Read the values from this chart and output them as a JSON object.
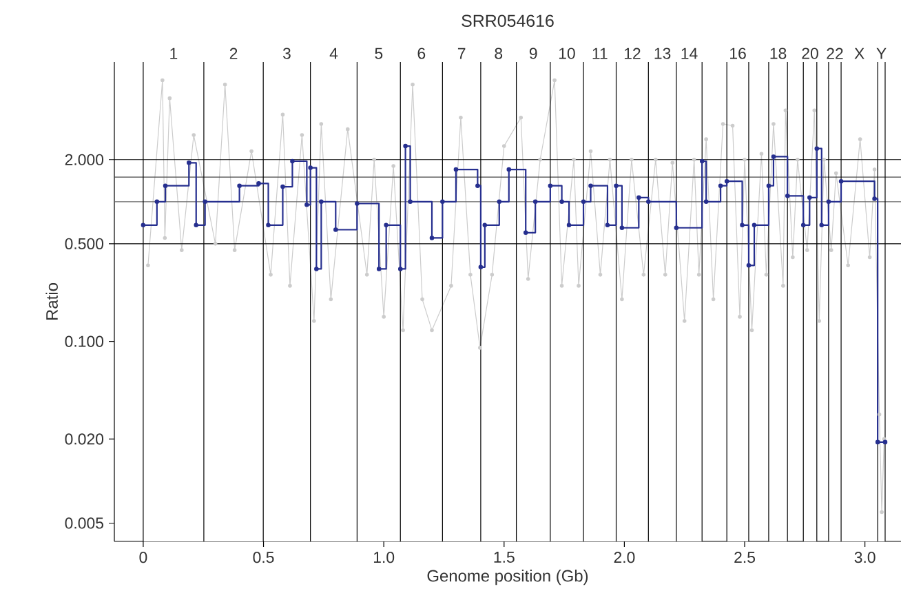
{
  "chart_data": {
    "type": "line",
    "title": "SRR054616",
    "xlabel": "Genome position (Gb)",
    "ylabel": "Ratio",
    "log": "y",
    "xlim": [
      -0.12,
      3.15
    ],
    "ylim": [
      0.0037,
      10
    ],
    "xticks": [
      0,
      0.5,
      {
        "value": 1,
        "label": "1.0"
      },
      1.5,
      {
        "value": 2,
        "label": "2.0"
      },
      2.5,
      {
        "value": 3,
        "label": "3.0"
      }
    ],
    "yticks": [
      {
        "value": 0.005,
        "label": "0.005"
      },
      {
        "value": 0.02,
        "label": "0.020"
      },
      {
        "value": 0.1,
        "label": "0.100"
      },
      {
        "value": 0.5,
        "label": "0.500"
      },
      {
        "value": 2,
        "label": "2.000"
      }
    ],
    "bands": [
      {
        "axis": "x",
        "from": 0,
        "to": 0.252,
        "label": "1",
        "color": "#ffffff"
      },
      {
        "axis": "x",
        "from": 0.252,
        "to": 0.499,
        "label": "2",
        "color": "#ffffff"
      },
      {
        "axis": "x",
        "from": 0.499,
        "to": 0.695,
        "label": "3",
        "color": "#ffffff"
      },
      {
        "axis": "x",
        "from": 0.695,
        "to": 0.889,
        "label": "4",
        "color": "#ffffff"
      },
      {
        "axis": "x",
        "from": 0.889,
        "to": 1.069,
        "label": "5",
        "color": "#ffffff"
      },
      {
        "axis": "x",
        "from": 1.069,
        "to": 1.244,
        "label": "6",
        "color": "#ffffff"
      },
      {
        "axis": "x",
        "from": 1.244,
        "to": 1.403,
        "label": "7",
        "color": "#ffffff"
      },
      {
        "axis": "x",
        "from": 1.403,
        "to": 1.551,
        "label": "8",
        "color": "#ffffff"
      },
      {
        "axis": "x",
        "from": 1.551,
        "to": 1.692,
        "label": "9",
        "color": "#ffffff"
      },
      {
        "axis": "x",
        "from": 1.692,
        "to": 1.83,
        "label": "10",
        "color": "#ffffff"
      },
      {
        "axis": "x",
        "from": 1.83,
        "to": 1.966,
        "label": "11",
        "color": "#ffffff"
      },
      {
        "axis": "x",
        "from": 1.966,
        "to": 2.1,
        "label": "12",
        "color": "#ffffff"
      },
      {
        "axis": "x",
        "from": 2.1,
        "to": 2.216,
        "label": "13",
        "color": "#ffffff"
      },
      {
        "axis": "x",
        "from": 2.216,
        "to": 2.323,
        "label": "14",
        "color": "#ffffff"
      },
      {
        "axis": "x",
        "from": 2.426,
        "to": 2.517,
        "label": "16",
        "color": "#ffffff"
      },
      {
        "axis": "x",
        "from": 2.6,
        "to": 2.678,
        "label": "18",
        "color": "#ffffff"
      },
      {
        "axis": "x",
        "from": 2.744,
        "to": 2.8,
        "label": "20",
        "color": "#ffffff"
      },
      {
        "axis": "x",
        "from": 2.849,
        "to": 2.901,
        "label": "22",
        "color": "#ffffff"
      },
      {
        "axis": "x",
        "from": 2.901,
        "to": 3.053,
        "label": "X",
        "color": "#ffffff"
      },
      {
        "axis": "x",
        "from": 3.053,
        "to": 3.084,
        "label": "Y",
        "color": "#ffffff"
      }
    ],
    "ref_lines": [
      {
        "axis": "y",
        "value": 2,
        "color": "#000000"
      },
      {
        "axis": "y",
        "value": 1.5,
        "color": "#444444"
      },
      {
        "axis": "y",
        "value": 1,
        "color": "#666666"
      },
      {
        "axis": "y",
        "value": 0.5,
        "color": "#000000"
      },
      {
        "axis": "x",
        "value": 0
      },
      {
        "axis": "x",
        "value": 0.252
      },
      {
        "axis": "x",
        "value": 0.499
      },
      {
        "axis": "x",
        "value": 0.695
      },
      {
        "axis": "x",
        "value": 0.889
      },
      {
        "axis": "x",
        "value": 1.069
      },
      {
        "axis": "x",
        "value": 1.244
      },
      {
        "axis": "x",
        "value": 1.403
      },
      {
        "axis": "x",
        "value": 1.551
      },
      {
        "axis": "x",
        "value": 1.692
      },
      {
        "axis": "x",
        "value": 1.83
      },
      {
        "axis": "x",
        "value": 1.966
      },
      {
        "axis": "x",
        "value": 2.1
      },
      {
        "axis": "x",
        "value": 2.216
      },
      {
        "axis": "x",
        "value": 2.323
      },
      {
        "axis": "x",
        "value": 2.426
      },
      {
        "axis": "x",
        "value": 2.517
      },
      {
        "axis": "x",
        "value": 2.6
      },
      {
        "axis": "x",
        "value": 2.678
      },
      {
        "axis": "x",
        "value": 2.744
      },
      {
        "axis": "x",
        "value": 2.8
      },
      {
        "axis": "x",
        "value": 2.849
      },
      {
        "axis": "x",
        "value": 2.901
      },
      {
        "axis": "x",
        "value": 3.053
      },
      {
        "axis": "x",
        "value": 3.084
      }
    ],
    "series": [
      {
        "color": "#cccccc",
        "marker": "circle",
        "x": [
          0.02,
          0.08,
          0.09,
          0.11,
          0.16,
          0.21,
          0.3,
          0.34,
          0.38,
          0.45,
          0.53,
          0.58,
          0.61,
          0.66,
          0.71,
          0.74,
          0.78,
          0.85,
          0.93,
          0.96,
          1.0,
          1.04,
          1.08,
          1.12,
          1.16,
          1.2,
          1.28,
          1.32,
          1.36,
          1.4,
          1.45,
          1.5,
          1.57,
          1.6,
          1.65,
          1.71,
          1.74,
          1.79,
          1.81,
          1.86,
          1.9,
          1.94,
          1.99,
          2.03,
          2.08,
          2.13,
          2.17,
          2.2,
          2.25,
          2.29,
          2.31,
          2.34,
          2.37,
          2.41,
          2.45,
          2.48,
          2.5,
          2.53,
          2.57,
          2.59,
          2.62,
          2.66,
          2.67,
          2.7,
          2.72,
          2.76,
          2.79,
          2.81,
          2.83,
          2.86,
          2.88,
          2.93,
          2.98,
          3.02,
          3.04,
          3.06,
          3.07,
          3.08
        ],
        "values": [
          0.35,
          7.4,
          0.55,
          5.5,
          0.45,
          3.0,
          0.5,
          6.9,
          0.45,
          2.3,
          0.3,
          4.2,
          0.25,
          3.0,
          0.14,
          3.6,
          0.2,
          3.3,
          0.3,
          2.0,
          0.15,
          1.8,
          0.12,
          6.9,
          0.2,
          0.12,
          0.25,
          4.0,
          0.3,
          0.09,
          0.3,
          2.5,
          4.0,
          0.28,
          2.0,
          7.4,
          0.25,
          2.0,
          0.25,
          2.3,
          0.3,
          2.0,
          0.2,
          2.0,
          0.3,
          2.0,
          0.3,
          1.9,
          0.14,
          2.0,
          0.3,
          2.8,
          0.2,
          3.6,
          3.5,
          0.15,
          2.0,
          0.12,
          2.2,
          0.3,
          3.6,
          0.25,
          4.5,
          0.4,
          2.0,
          0.45,
          4.5,
          0.14,
          2.0,
          0.45,
          1.6,
          0.35,
          2.8,
          0.4,
          1.7,
          0.03,
          0.006,
          0.02
        ]
      },
      {
        "type": "step",
        "color": "#262f8f",
        "marker": "circle",
        "x": [
          0,
          0.057,
          0.092,
          0.19,
          0.22,
          0.257,
          0.4,
          0.48,
          0.52,
          0.58,
          0.62,
          0.68,
          0.695,
          0.72,
          0.74,
          0.8,
          0.889,
          0.98,
          1.01,
          1.069,
          1.09,
          1.11,
          1.2,
          1.244,
          1.3,
          1.39,
          1.403,
          1.42,
          1.48,
          1.52,
          1.59,
          1.63,
          1.692,
          1.74,
          1.77,
          1.83,
          1.86,
          1.93,
          1.966,
          1.99,
          2.06,
          2.1,
          2.216,
          2.323,
          2.34,
          2.4,
          2.426,
          2.49,
          2.517,
          2.54,
          2.6,
          2.62,
          2.678,
          2.744,
          2.77,
          2.8,
          2.82,
          2.849,
          2.901,
          3.04,
          3.053,
          3.084
        ],
        "values": [
          0.68,
          1.0,
          1.3,
          1.9,
          0.68,
          1.0,
          1.3,
          1.35,
          0.68,
          1.28,
          1.95,
          0.95,
          1.75,
          0.33,
          1.0,
          0.63,
          0.97,
          0.33,
          0.68,
          0.33,
          2.5,
          1.0,
          0.55,
          1.0,
          1.7,
          1.3,
          0.34,
          0.68,
          1.0,
          1.7,
          0.6,
          1.0,
          1.3,
          1.0,
          0.68,
          1.0,
          1.3,
          0.68,
          1.3,
          0.65,
          1.07,
          1.0,
          0.65,
          1.95,
          1.0,
          1.3,
          1.4,
          0.68,
          0.35,
          0.68,
          1.3,
          2.1,
          1.1,
          0.68,
          1.07,
          2.4,
          0.68,
          1.0,
          1.4,
          1.05,
          0.019,
          0.019
        ]
      }
    ]
  }
}
